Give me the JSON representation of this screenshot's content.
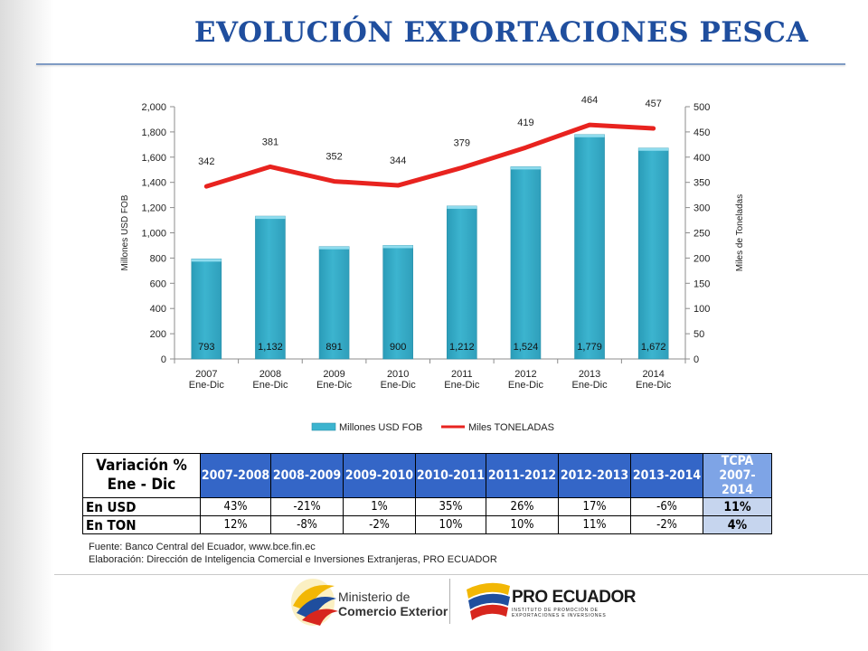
{
  "title": "EVOLUCIÓN EXPORTACIONES PESCA",
  "chart_data": {
    "type": "bar+line",
    "categories": [
      "2007\nEne-Dic",
      "2008\nEne-Dic",
      "2009\nEne-Dic",
      "2010\nEne-Dic",
      "2011\nEne-Dic",
      "2012\nEne-Dic",
      "2013\nEne-Dic",
      "2014\nEne-Dic"
    ],
    "category_year": [
      "2007",
      "2008",
      "2009",
      "2010",
      "2011",
      "2012",
      "2013",
      "2014"
    ],
    "category_period": [
      "Ene-Dic",
      "Ene-Dic",
      "Ene-Dic",
      "Ene-Dic",
      "Ene-Dic",
      "Ene-Dic",
      "Ene-Dic",
      "Ene-Dic"
    ],
    "series": [
      {
        "name": "Millones USD FOB",
        "type": "bar",
        "axis": "left",
        "values": [
          793,
          1132,
          891,
          900,
          1212,
          1524,
          1779,
          1672
        ],
        "labels": [
          "793",
          "1,132",
          "891",
          "900",
          "1,212",
          "1,524",
          "1,779",
          "1,672"
        ],
        "color": "#3cb4cf"
      },
      {
        "name": "Miles TONELADAS",
        "type": "line",
        "axis": "right",
        "values": [
          342,
          381,
          352,
          344,
          379,
          419,
          464,
          457
        ],
        "labels": [
          "342",
          "381",
          "352",
          "344",
          "379",
          "419",
          "464",
          "457"
        ],
        "color": "#e8231f"
      }
    ],
    "ylabel": "Millones USD FOB",
    "y2label": "Miles  de  Toneladas",
    "ylim": [
      0,
      2000
    ],
    "y2lim": [
      0,
      500
    ],
    "yticks": [
      "0",
      "200",
      "400",
      "600",
      "800",
      "1,000",
      "1,200",
      "1,400",
      "1,600",
      "1,800",
      "2,000"
    ],
    "y2ticks": [
      "0",
      "50",
      "100",
      "150",
      "200",
      "250",
      "300",
      "350",
      "400",
      "450",
      "500"
    ],
    "grid": false,
    "legend": "bottom"
  },
  "table": {
    "corner_line1": "Variación %",
    "corner_line2": "Ene - Dic",
    "periods": [
      "2007-2008",
      "2008-2009",
      "2009-2010",
      "2010-2011",
      "2011-2012",
      "2012-2013",
      "2013-2014"
    ],
    "tcpa_line1": "TCPA",
    "tcpa_line2": "2007-2014",
    "rows": [
      {
        "label": "En USD",
        "values": [
          "43%",
          "-21%",
          "1%",
          "35%",
          "26%",
          "17%",
          "-6%"
        ],
        "tcpa": "11%"
      },
      {
        "label": "En TON",
        "values": [
          "12%",
          "-8%",
          "-2%",
          "10%",
          "10%",
          "11%",
          "-2%"
        ],
        "tcpa": "4%"
      }
    ]
  },
  "source": {
    "line1": "Fuente: Banco Central del Ecuador, www.bce.fin.ec",
    "line2": "Elaboración: Dirección de Inteligencia Comercial e Inversiones Extranjeras, PRO ECUADOR"
  },
  "logos": {
    "ministerio_line1": "Ministerio de",
    "ministerio_line2": "Comercio Exterior",
    "proecuador_name": "PRO ECUADOR",
    "proecuador_tag1": "INSTITUTO DE PROMOCIÓN DE",
    "proecuador_tag2": "EXPORTACIONES E INVERSIONES"
  },
  "colors": {
    "title": "#1f4e9e",
    "header": "#3466c7",
    "tcpa_header": "#7ea4e6",
    "tcpa_cell": "#c6d5ee"
  }
}
